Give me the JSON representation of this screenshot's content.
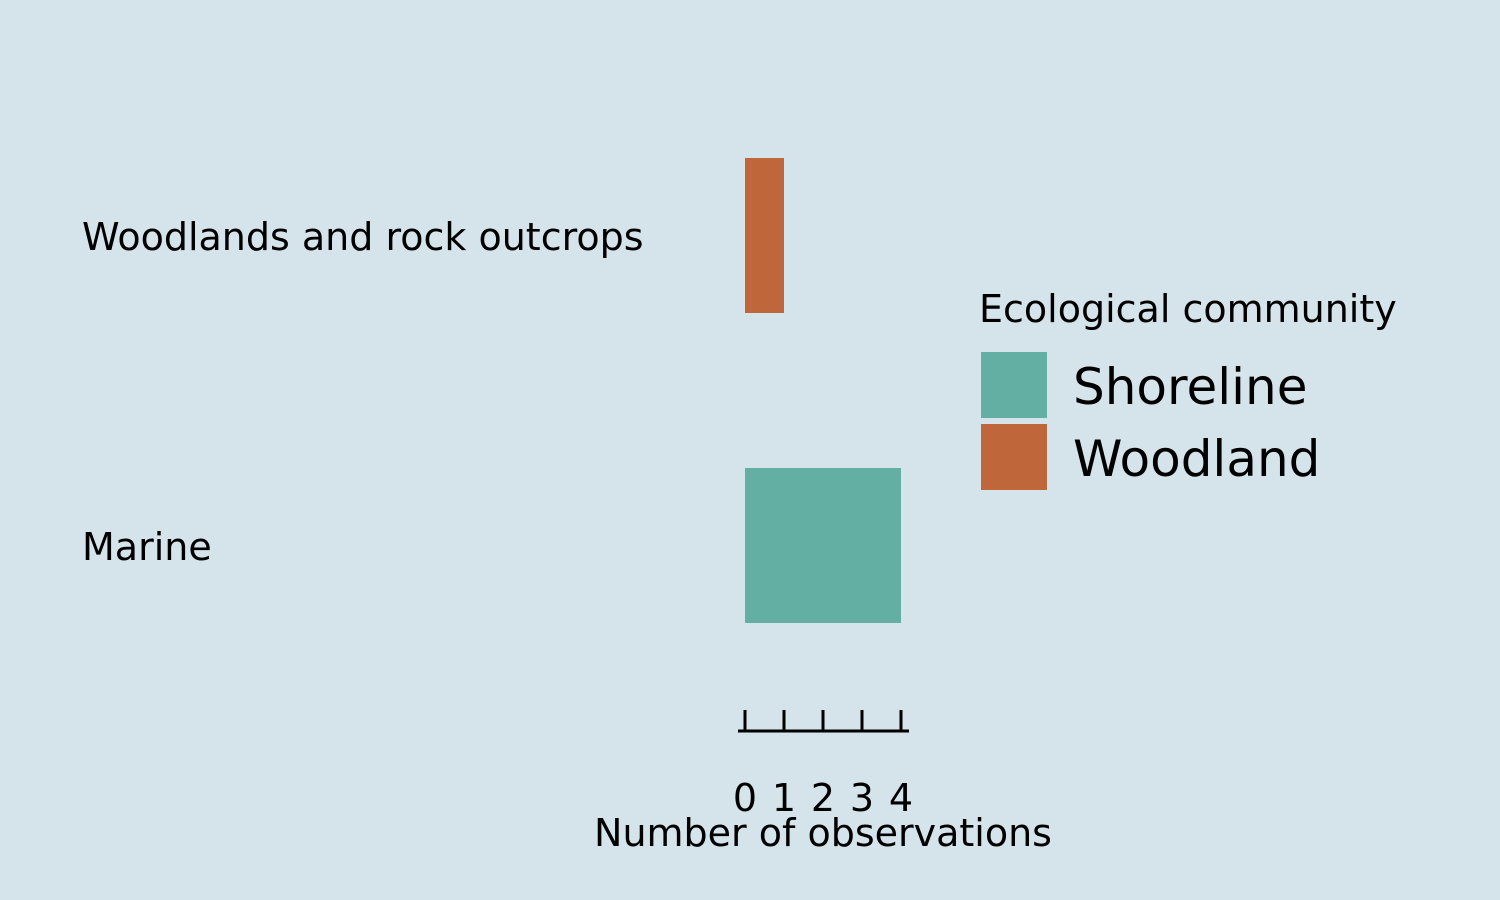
{
  "chart_data": {
    "type": "bar",
    "orientation": "horizontal",
    "categories": [
      "Woodlands and rock outcrops",
      "Marine"
    ],
    "series": [
      {
        "name": "Shoreline",
        "color": "#64afa4",
        "values": [
          0,
          4
        ]
      },
      {
        "name": "Woodland",
        "color": "#bf663b",
        "values": [
          1,
          0
        ]
      }
    ],
    "xlabel": "Number of observations",
    "xticks": [
      "0",
      "1",
      "2",
      "3",
      "4"
    ],
    "xlim": [
      0,
      4
    ],
    "legend": {
      "title": "Ecological community",
      "placement": "right"
    },
    "background": "#d5e4eb"
  }
}
